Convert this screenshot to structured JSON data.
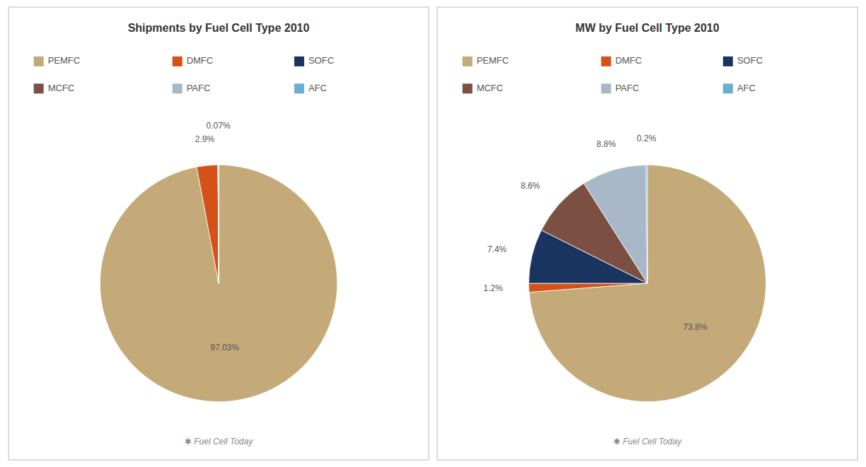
{
  "chart_data": [
    {
      "type": "pie",
      "title": "Shipments by Fuel Cell Type 2010",
      "categories": [
        "PEMFC",
        "DMFC",
        "SOFC",
        "MCFC",
        "PAFC",
        "AFC"
      ],
      "values": [
        97.03,
        2.9,
        0.0,
        0.0,
        0.07,
        0.0
      ],
      "value_labels": [
        "97.03%",
        "2.9%",
        null,
        null,
        "0.07%",
        null
      ],
      "colors": [
        "#C4AA78",
        "#D4521A",
        "#1A3460",
        "#7B4F42",
        "#A8B8C8",
        "#6AAED4"
      ],
      "data_labels": true,
      "legend": "top",
      "annotations": [
        "✱ Fuel Cell Today"
      ]
    },
    {
      "type": "pie",
      "title": "MW by Fuel Cell Type 2010",
      "categories": [
        "PEMFC",
        "DMFC",
        "SOFC",
        "MCFC",
        "PAFC",
        "AFC"
      ],
      "values": [
        73.8,
        1.2,
        7.4,
        8.6,
        8.8,
        0.2
      ],
      "value_labels": [
        "73.8%",
        "1.2%",
        "7.4%",
        "8.6%",
        "8.8%",
        "0.2%"
      ],
      "colors": [
        "#C4AA78",
        "#D4521A",
        "#1A3460",
        "#7B4F42",
        "#A8B8C8",
        "#6AAED4"
      ],
      "data_labels": true,
      "legend": "top",
      "annotations": [
        "✱ Fuel Cell Today"
      ]
    }
  ]
}
